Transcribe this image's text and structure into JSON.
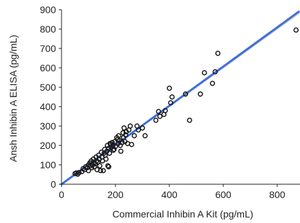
{
  "chart_data": {
    "type": "scatter",
    "xlabel": "Commercial Inhibin A Kit (pg/mL)",
    "ylabel": "Ansh Inhibin A ELISA  (pg/mL)",
    "xlim": [
      0,
      900
    ],
    "ylim": [
      0,
      900
    ],
    "x_ticks": [
      0,
      200,
      400,
      600,
      800
    ],
    "y_ticks": [
      0,
      100,
      200,
      300,
      400,
      500,
      600,
      700,
      800,
      900
    ],
    "grid": false,
    "legend": "none",
    "colors": {
      "points": "#1a1a1a",
      "fit_line": "#3f6fd8",
      "identity_line": "#b8b8b8"
    },
    "fit_line": {
      "x": [
        0,
        880
      ],
      "y": [
        0,
        890
      ]
    },
    "identity_line": {
      "x": [
        0,
        900
      ],
      "y": [
        0,
        900
      ]
    },
    "points": [
      {
        "x": 50,
        "y": 55
      },
      {
        "x": 55,
        "y": 58
      },
      {
        "x": 60,
        "y": 52
      },
      {
        "x": 65,
        "y": 60
      },
      {
        "x": 75,
        "y": 65
      },
      {
        "x": 80,
        "y": 80
      },
      {
        "x": 85,
        "y": 75
      },
      {
        "x": 90,
        "y": 90
      },
      {
        "x": 95,
        "y": 85
      },
      {
        "x": 100,
        "y": 70
      },
      {
        "x": 100,
        "y": 100
      },
      {
        "x": 105,
        "y": 110
      },
      {
        "x": 108,
        "y": 95
      },
      {
        "x": 110,
        "y": 120
      },
      {
        "x": 112,
        "y": 85
      },
      {
        "x": 115,
        "y": 100
      },
      {
        "x": 118,
        "y": 130
      },
      {
        "x": 120,
        "y": 110
      },
      {
        "x": 122,
        "y": 90
      },
      {
        "x": 125,
        "y": 105
      },
      {
        "x": 128,
        "y": 140
      },
      {
        "x": 130,
        "y": 120
      },
      {
        "x": 132,
        "y": 75
      },
      {
        "x": 135,
        "y": 115
      },
      {
        "x": 138,
        "y": 150
      },
      {
        "x": 140,
        "y": 130
      },
      {
        "x": 142,
        "y": 95
      },
      {
        "x": 145,
        "y": 70
      },
      {
        "x": 148,
        "y": 165
      },
      {
        "x": 150,
        "y": 140
      },
      {
        "x": 152,
        "y": 120
      },
      {
        "x": 155,
        "y": 70
      },
      {
        "x": 158,
        "y": 160
      },
      {
        "x": 160,
        "y": 180
      },
      {
        "x": 162,
        "y": 150
      },
      {
        "x": 165,
        "y": 130
      },
      {
        "x": 168,
        "y": 170
      },
      {
        "x": 170,
        "y": 200
      },
      {
        "x": 172,
        "y": 95
      },
      {
        "x": 175,
        "y": 90
      },
      {
        "x": 175,
        "y": 185
      },
      {
        "x": 178,
        "y": 160
      },
      {
        "x": 180,
        "y": 210
      },
      {
        "x": 182,
        "y": 205
      },
      {
        "x": 185,
        "y": 190
      },
      {
        "x": 188,
        "y": 215
      },
      {
        "x": 190,
        "y": 200
      },
      {
        "x": 192,
        "y": 175
      },
      {
        "x": 195,
        "y": 180
      },
      {
        "x": 198,
        "y": 220
      },
      {
        "x": 200,
        "y": 195
      },
      {
        "x": 205,
        "y": 240
      },
      {
        "x": 208,
        "y": 230
      },
      {
        "x": 210,
        "y": 210
      },
      {
        "x": 212,
        "y": 250
      },
      {
        "x": 215,
        "y": 225
      },
      {
        "x": 218,
        "y": 200
      },
      {
        "x": 220,
        "y": 170
      },
      {
        "x": 225,
        "y": 215
      },
      {
        "x": 228,
        "y": 265
      },
      {
        "x": 230,
        "y": 240
      },
      {
        "x": 232,
        "y": 290
      },
      {
        "x": 235,
        "y": 220
      },
      {
        "x": 238,
        "y": 255
      },
      {
        "x": 240,
        "y": 270
      },
      {
        "x": 245,
        "y": 210
      },
      {
        "x": 250,
        "y": 280
      },
      {
        "x": 255,
        "y": 300
      },
      {
        "x": 260,
        "y": 205
      },
      {
        "x": 270,
        "y": 250
      },
      {
        "x": 280,
        "y": 300
      },
      {
        "x": 285,
        "y": 280
      },
      {
        "x": 300,
        "y": 290
      },
      {
        "x": 310,
        "y": 250
      },
      {
        "x": 350,
        "y": 330
      },
      {
        "x": 360,
        "y": 375
      },
      {
        "x": 365,
        "y": 350
      },
      {
        "x": 380,
        "y": 360
      },
      {
        "x": 385,
        "y": 380
      },
      {
        "x": 400,
        "y": 495
      },
      {
        "x": 405,
        "y": 420
      },
      {
        "x": 410,
        "y": 450
      },
      {
        "x": 460,
        "y": 465
      },
      {
        "x": 475,
        "y": 330
      },
      {
        "x": 515,
        "y": 465
      },
      {
        "x": 530,
        "y": 575
      },
      {
        "x": 560,
        "y": 520
      },
      {
        "x": 570,
        "y": 580
      },
      {
        "x": 580,
        "y": 675
      },
      {
        "x": 870,
        "y": 795
      }
    ]
  }
}
